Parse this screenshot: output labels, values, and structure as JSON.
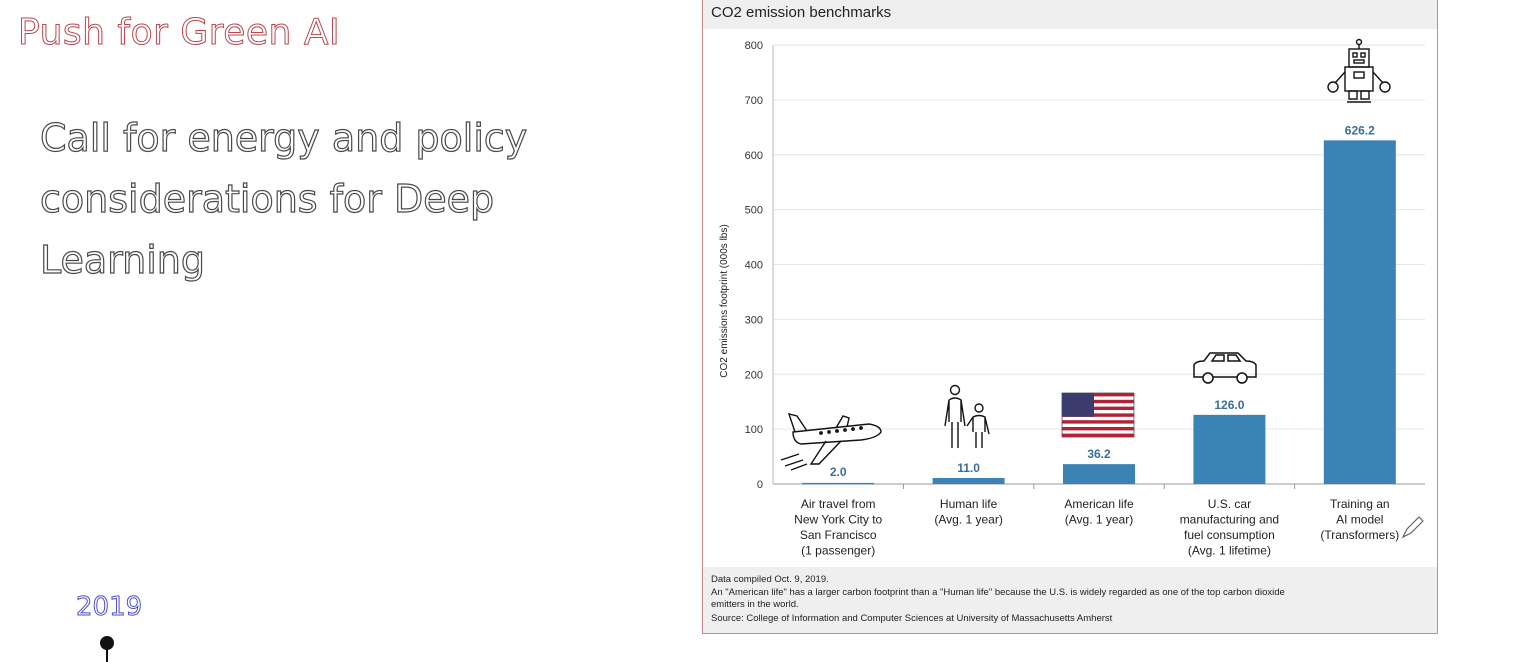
{
  "slide": {
    "title": "Push for Green AI",
    "body_lines": [
      "Call for energy and policy",
      "considerations for Deep",
      "Learning"
    ],
    "year": "2019"
  },
  "chart_data": {
    "type": "bar",
    "title": "CO2 emission benchmarks",
    "ylabel": "CO2 emissions footprint (000s lbs)",
    "xlabel": "",
    "ylim": [
      0,
      800
    ],
    "yticks": [
      0,
      100,
      200,
      300,
      400,
      500,
      600,
      700,
      800
    ],
    "grid": true,
    "bar_color": "#3b82b5",
    "categories": [
      [
        "Air travel from",
        "New York City to",
        "San Francisco",
        "(1 passenger)"
      ],
      [
        "Human life",
        "(Avg. 1 year)"
      ],
      [
        "American life",
        "(Avg. 1 year)"
      ],
      [
        "U.S. car",
        "manufacturing and",
        "fuel consumption",
        "(Avg. 1 lifetime)"
      ],
      [
        "Training an",
        "AI model",
        "(Transformers)"
      ]
    ],
    "values": [
      2.0,
      11.0,
      36.2,
      126.0,
      626.2
    ],
    "value_labels": [
      "2.0",
      "11.0",
      "36.2",
      "126.0",
      "626.2"
    ],
    "icons": [
      "airplane-icon",
      "people-icon",
      "us-flag-icon",
      "car-icon",
      "robot-icon"
    ],
    "footer": [
      "Data compiled Oct. 9, 2019.",
      "An \"American life\" has a larger carbon footprint than a \"Human life\" because the U.S. is widely regarded as one of the top carbon dioxide",
      "emitters in the world.",
      "Source: College of Information and Computer Sciences at University of Massachusetts Amherst"
    ]
  }
}
